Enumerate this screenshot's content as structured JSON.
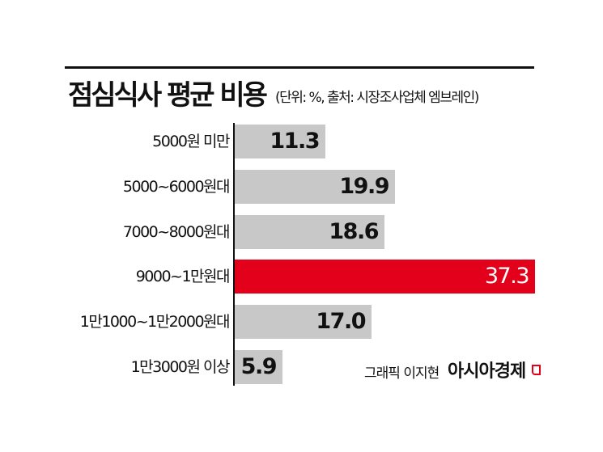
{
  "header": {
    "title": "점심식사 평균 비용",
    "subtitle": "(단위: %, 출처: 시장조사업체 엠브레인)"
  },
  "chart_data": {
    "type": "bar",
    "orientation": "horizontal",
    "title": "점심식사 평균 비용",
    "subtitle": "(단위: %, 출처: 시장조사업체 엠브레인)",
    "unit": "%",
    "source": "시장조사업체 엠브레인",
    "categories": [
      "5000원 미만",
      "5000~6000원대",
      "7000~8000원대",
      "9000~1만원대",
      "1만1000~1만2000원대",
      "1만3000원 이상"
    ],
    "values": [
      11.3,
      19.9,
      18.6,
      37.3,
      17.0,
      5.9
    ],
    "value_labels": [
      "11.3",
      "19.9",
      "18.6",
      "37.3",
      "17.0",
      "5.9"
    ],
    "highlight_index": 3,
    "colors": {
      "default": "#c8c8c9",
      "highlight": "#e2001a"
    },
    "xlabel": "",
    "ylabel": "",
    "grid": false,
    "legend": false
  },
  "footer": {
    "credit": "그래픽 이지현",
    "brand": "아시아경제"
  }
}
